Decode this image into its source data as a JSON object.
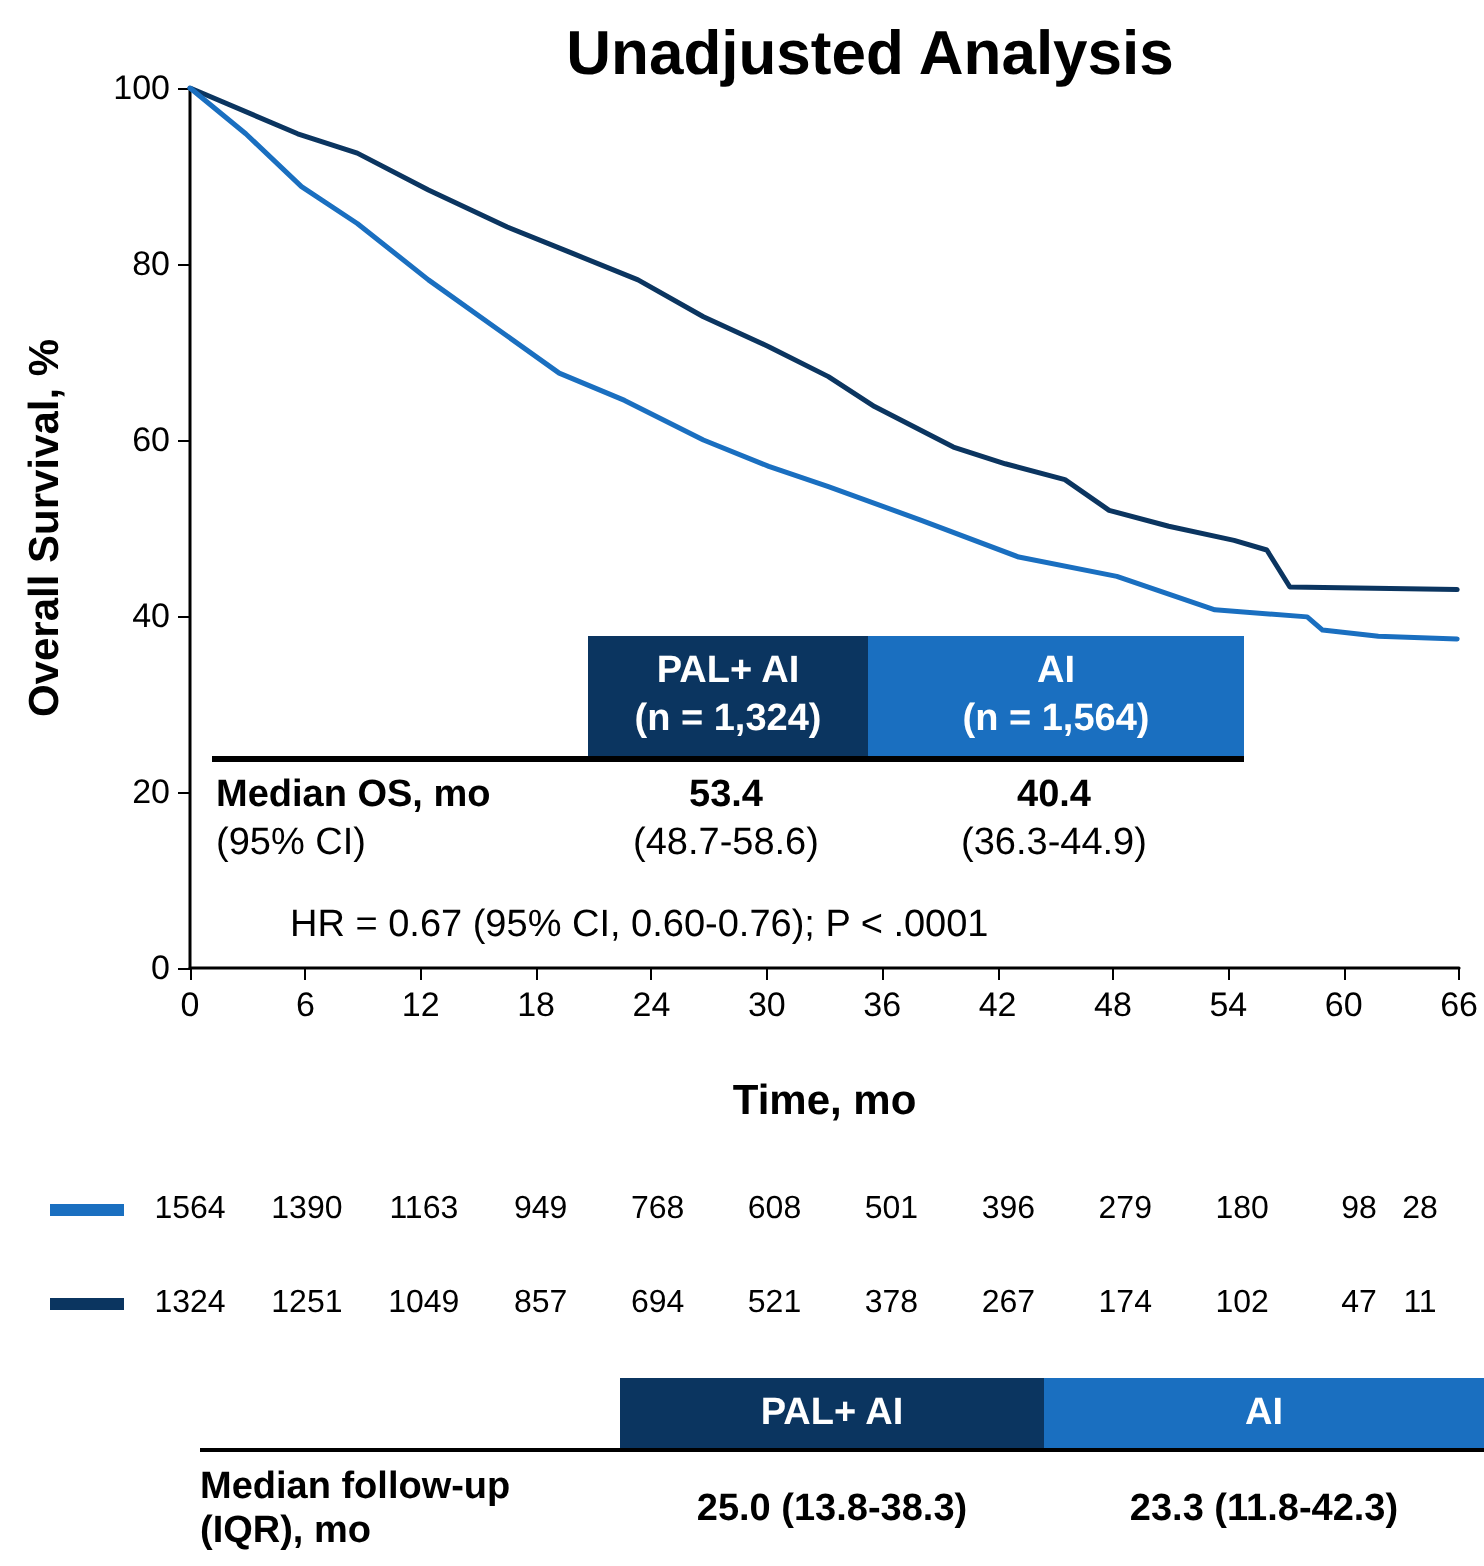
{
  "chart_data": {
    "type": "line",
    "title": "Unadjusted Analysis",
    "xlabel": "Time, mo",
    "ylabel": "Overall Survival, %",
    "xlim": [
      0,
      66
    ],
    "xticks": [
      0,
      6,
      12,
      18,
      24,
      30,
      36,
      42,
      48,
      54,
      60,
      66
    ],
    "ylim": [
      0,
      100
    ],
    "yticks": [
      0,
      20,
      40,
      60,
      80,
      100
    ],
    "marker": "none",
    "line_style": "solid",
    "series": [
      {
        "name": "PAL+ AI",
        "color": "#0b3560",
        "x": [
          0,
          5.6,
          8.7,
          12.4,
          16.5,
          19.9,
          23.3,
          26.7,
          30.1,
          33.2,
          35.6,
          39.7,
          42.4,
          45.5,
          47.8,
          50.9,
          54.3,
          56.0,
          57.2,
          65.9
        ],
        "values": [
          100,
          94.8,
          92.6,
          88.4,
          84.2,
          81.2,
          78.2,
          74.0,
          70.6,
          67.2,
          63.8,
          59.2,
          57.3,
          55.5,
          52.0,
          50.2,
          48.6,
          47.5,
          43.3,
          43.0
        ]
      },
      {
        "name": "AI",
        "color": "#1a6fc0",
        "x": [
          0,
          2.9,
          5.8,
          8.7,
          12.4,
          15.8,
          19.2,
          22.6,
          26.7,
          30.1,
          33.2,
          38.0,
          43.1,
          48.2,
          53.3,
          58.1,
          58.9,
          61.8,
          65.9
        ],
        "values": [
          100,
          94.8,
          88.8,
          84.6,
          78.2,
          72.9,
          67.6,
          64.5,
          60.0,
          57.0,
          54.7,
          50.9,
          46.7,
          44.5,
          40.7,
          39.9,
          38.4,
          37.7,
          37.4
        ]
      }
    ],
    "annotations": [
      "(n = 1,324)",
      "(n = 1,564)",
      "Median OS, mo",
      "(95% CI)",
      "53.4",
      "(48.7-58.6)",
      "40.4",
      "(36.3-44.9)",
      "HR = 0.67 (95% CI, 0.60-0.76); P < .0001",
      "1564 1390 1163 949 768 608 501 396 279 180 98 28",
      "1324 1251 1049 857 694 521 378 267 174 102 47 11",
      "Median follow-up (IQR), mo",
      "25.0 (13.8-38.3)",
      "23.3 (11.8-42.3)"
    ]
  }
}
